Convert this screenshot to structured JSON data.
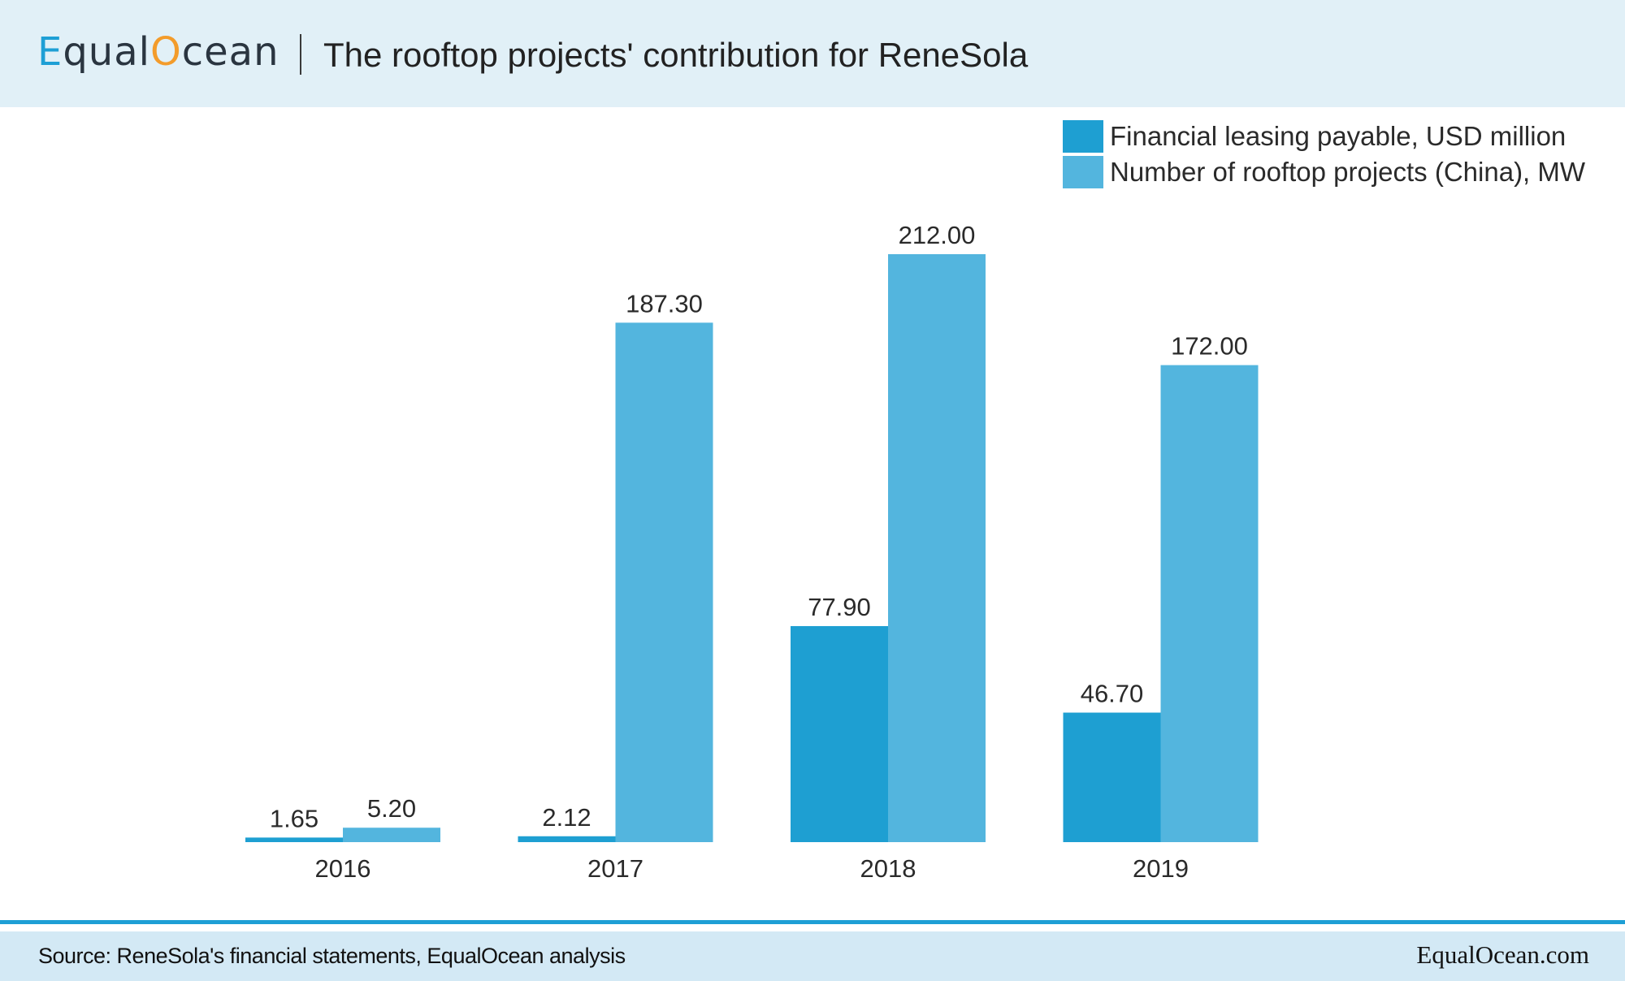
{
  "header": {
    "logo_parts": [
      "Equal",
      "Ocean"
    ],
    "title": "The rooftop projects' contribution for ReneSola"
  },
  "legend": [
    {
      "label": "Financial leasing payable, USD million",
      "color": "#1e9fd2"
    },
    {
      "label": "Number of rooftop projects (China), MW",
      "color": "#53b5de"
    }
  ],
  "chart_data": {
    "type": "bar",
    "title": "The rooftop projects' contribution for ReneSola",
    "categories": [
      "2016",
      "2017",
      "2018",
      "2019"
    ],
    "series": [
      {
        "name": "Financial leasing payable, USD million",
        "values": [
          1.65,
          2.12,
          77.9,
          46.7
        ],
        "labels": [
          "1.65",
          "2.12",
          "77.90",
          "46.70"
        ],
        "color": "#1e9fd2"
      },
      {
        "name": "Number of rooftop projects (China), MW",
        "values": [
          5.2,
          187.3,
          212.0,
          172.0
        ],
        "labels": [
          "5.20",
          "187.30",
          "212.00",
          "172.00"
        ],
        "color": "#53b5de"
      }
    ],
    "ylim": [
      0,
      212
    ],
    "grid": false,
    "legend_position": "top-right"
  },
  "footer": {
    "source": "Source: ReneSola's financial statements, EqualOcean analysis",
    "brand": "EqualOcean.com"
  }
}
